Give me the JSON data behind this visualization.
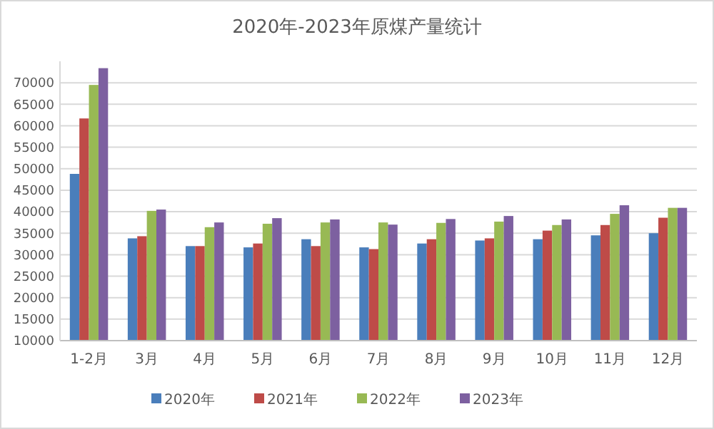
{
  "chart_data": {
    "type": "bar",
    "title": "2020年-2023年原煤产量统计",
    "categories": [
      "1-2月",
      "3月",
      "4月",
      "5月",
      "6月",
      "7月",
      "8月",
      "9月",
      "10月",
      "11月",
      "12月"
    ],
    "series": [
      {
        "name": "2020年",
        "color": "#4a7ebb",
        "values": [
          48800,
          33800,
          32000,
          31700,
          33600,
          31700,
          32600,
          33300,
          33600,
          34500,
          35000
        ]
      },
      {
        "name": "2021年",
        "color": "#be4b48",
        "values": [
          61700,
          34300,
          32000,
          32600,
          32000,
          31300,
          33600,
          33800,
          35600,
          36900,
          38600
        ]
      },
      {
        "name": "2022年",
        "color": "#98b954",
        "values": [
          69500,
          40200,
          36400,
          37200,
          37500,
          37500,
          37400,
          37700,
          36900,
          39500,
          40900
        ]
      },
      {
        "name": "2023年",
        "color": "#7d60a0",
        "values": [
          73400,
          40500,
          37500,
          38500,
          38200,
          37000,
          38300,
          39000,
          38200,
          41500,
          40900
        ]
      }
    ],
    "ylim": [
      10000,
      75000
    ],
    "yticks": [
      10000,
      15000,
      20000,
      25000,
      30000,
      35000,
      40000,
      45000,
      50000,
      55000,
      60000,
      65000,
      70000
    ],
    "grid": "y",
    "legend": "bottom"
  }
}
